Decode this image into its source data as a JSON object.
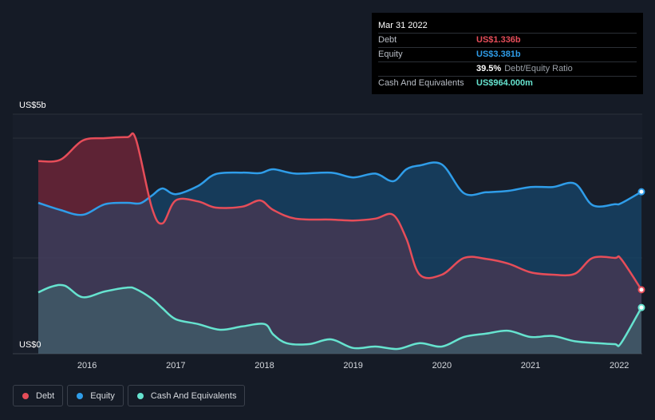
{
  "tooltip": {
    "date": "Mar 31 2022",
    "rows": [
      {
        "label": "Debt",
        "value": "US$1.336b",
        "color": "#e64d59"
      },
      {
        "label": "Equity",
        "value": "US$3.381b",
        "color": "#2f9de9"
      },
      {
        "label": "",
        "value": "39.5%",
        "suffix": "Debt/Equity Ratio"
      },
      {
        "label": "Cash And Equivalents",
        "value": "US$964.000m",
        "color": "#66e3cf"
      }
    ]
  },
  "legend": [
    {
      "label": "Debt",
      "color": "#e64d59"
    },
    {
      "label": "Equity",
      "color": "#2f9de9"
    },
    {
      "label": "Cash And Equivalents",
      "color": "#66e3cf"
    }
  ],
  "chart_data": {
    "type": "area",
    "y_top_label": "US$5b",
    "y_bottom_label": "US$0",
    "ylim": [
      0,
      5
    ],
    "xlim": [
      2015.45,
      2022.25
    ],
    "x_ticks": [
      "2016",
      "2017",
      "2018",
      "2019",
      "2020",
      "2021",
      "2022"
    ],
    "x_tick_values": [
      2016,
      2017,
      2018,
      2019,
      2020,
      2021,
      2022
    ],
    "grid": true,
    "series": [
      {
        "name": "Debt",
        "color": "#e64d59",
        "x": [
          2015.45,
          2015.7,
          2015.95,
          2016.2,
          2016.45,
          2016.55,
          2016.73,
          2016.85,
          2017.0,
          2017.25,
          2017.45,
          2017.75,
          2017.95,
          2018.1,
          2018.35,
          2018.75,
          2019.0,
          2019.25,
          2019.45,
          2019.6,
          2019.75,
          2020.0,
          2020.25,
          2020.5,
          2020.75,
          2021.0,
          2021.25,
          2021.5,
          2021.7,
          2021.95,
          2022.02,
          2022.25
        ],
        "values": [
          4.02,
          4.05,
          4.45,
          4.5,
          4.52,
          4.48,
          3.05,
          2.72,
          3.2,
          3.18,
          3.05,
          3.07,
          3.2,
          3.0,
          2.82,
          2.8,
          2.78,
          2.82,
          2.9,
          2.4,
          1.65,
          1.65,
          2.0,
          1.98,
          1.88,
          1.7,
          1.65,
          1.67,
          2.0,
          2.0,
          1.98,
          1.336
        ]
      },
      {
        "name": "Equity",
        "color": "#2f9de9",
        "x": [
          2015.45,
          2015.7,
          2015.95,
          2016.2,
          2016.45,
          2016.6,
          2016.73,
          2016.85,
          2017.0,
          2017.25,
          2017.45,
          2017.75,
          2017.95,
          2018.1,
          2018.35,
          2018.75,
          2019.0,
          2019.25,
          2019.45,
          2019.6,
          2019.75,
          2020.0,
          2020.25,
          2020.5,
          2020.75,
          2021.0,
          2021.25,
          2021.5,
          2021.7,
          2021.95,
          2022.02,
          2022.25
        ],
        "values": [
          3.15,
          3.0,
          2.9,
          3.12,
          3.15,
          3.14,
          3.3,
          3.45,
          3.33,
          3.5,
          3.75,
          3.78,
          3.77,
          3.85,
          3.76,
          3.78,
          3.68,
          3.76,
          3.6,
          3.85,
          3.93,
          3.95,
          3.35,
          3.37,
          3.4,
          3.48,
          3.48,
          3.55,
          3.1,
          3.12,
          3.14,
          3.381
        ]
      },
      {
        "name": "Cash And Equivalents",
        "color": "#66e3cf",
        "x": [
          2015.45,
          2015.6,
          2015.75,
          2015.95,
          2016.2,
          2016.45,
          2016.55,
          2016.73,
          2016.85,
          2017.0,
          2017.25,
          2017.5,
          2017.75,
          2018.0,
          2018.1,
          2018.25,
          2018.5,
          2018.75,
          2019.0,
          2019.25,
          2019.5,
          2019.75,
          2020.0,
          2020.25,
          2020.5,
          2020.75,
          2021.0,
          2021.25,
          2021.5,
          2021.75,
          2021.95,
          2022.02,
          2022.25
        ],
        "values": [
          1.28,
          1.4,
          1.42,
          1.18,
          1.3,
          1.38,
          1.35,
          1.15,
          0.95,
          0.72,
          0.62,
          0.5,
          0.57,
          0.62,
          0.4,
          0.22,
          0.2,
          0.3,
          0.12,
          0.15,
          0.1,
          0.22,
          0.15,
          0.35,
          0.42,
          0.48,
          0.35,
          0.37,
          0.26,
          0.22,
          0.2,
          0.22,
          0.964
        ]
      }
    ]
  }
}
